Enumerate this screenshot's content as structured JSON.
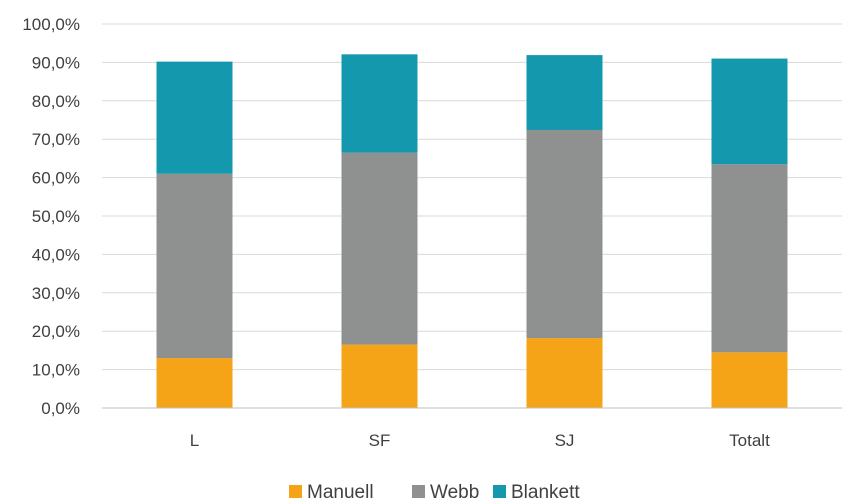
{
  "chart_data": {
    "type": "bar",
    "stacked": true,
    "categories": [
      "L",
      "SF",
      "SJ",
      "Totalt"
    ],
    "series": [
      {
        "name": "Manuell",
        "color": "#f5a317",
        "values": [
          13.0,
          16.5,
          18.2,
          14.5
        ]
      },
      {
        "name": "Webb",
        "color": "#8f9090",
        "values": [
          48.0,
          50.0,
          54.2,
          49.0
        ]
      },
      {
        "name": "Blankett",
        "color": "#1398ad",
        "values": [
          29.2,
          25.6,
          19.5,
          27.5
        ]
      }
    ],
    "ylim": [
      0,
      100
    ],
    "yticks": [
      "0,0%",
      "10,0%",
      "20,0%",
      "30,0%",
      "40,0%",
      "50,0%",
      "60,0%",
      "70,0%",
      "80,0%",
      "90,0%",
      "100,0%"
    ],
    "grid": true,
    "legend_position": "bottom"
  }
}
